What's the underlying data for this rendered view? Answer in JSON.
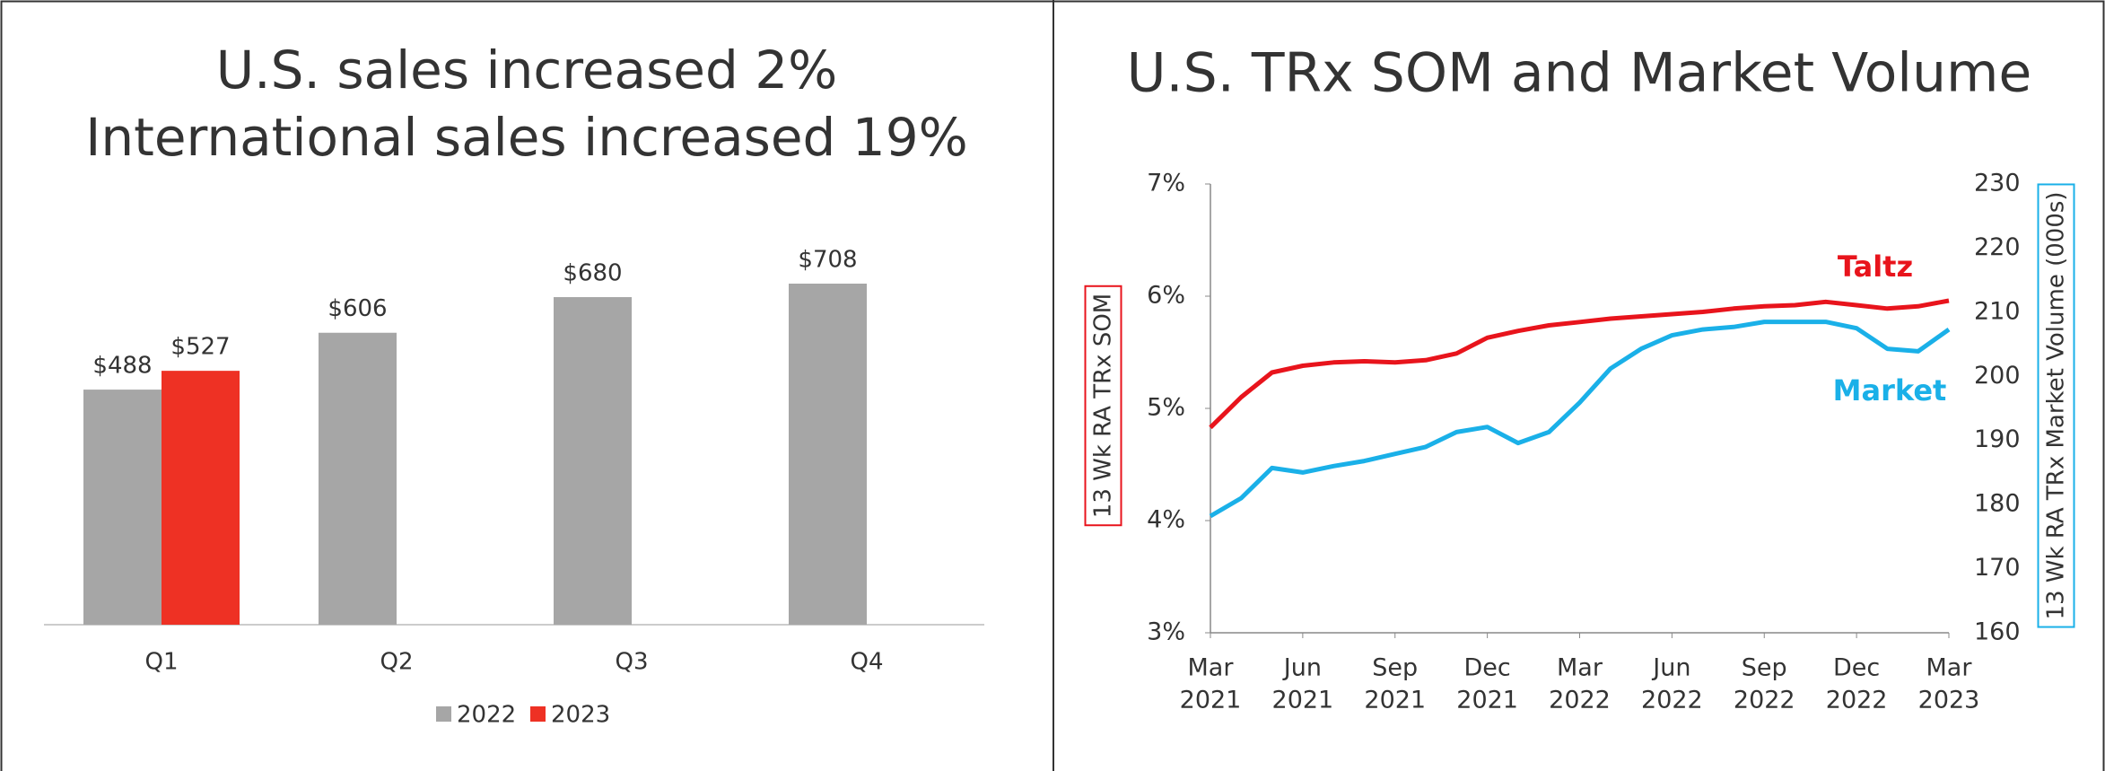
{
  "chart_data": [
    {
      "type": "bar",
      "title": [
        "U.S. sales increased 2%",
        "International sales increased 19%"
      ],
      "categories": [
        "Q1",
        "Q2",
        "Q3",
        "Q4"
      ],
      "series": [
        {
          "name": "2022",
          "color": "#a6a6a6",
          "values": [
            488,
            606,
            680,
            708
          ],
          "value_labels": [
            "$488",
            "$606",
            "$680",
            "$708"
          ]
        },
        {
          "name": "2023",
          "color": "#ee3124",
          "values": [
            527,
            null,
            null,
            null
          ],
          "value_labels": [
            "$527",
            null,
            null,
            null
          ]
        }
      ],
      "legend": "bottom"
    },
    {
      "type": "line",
      "title": "U.S. TRx SOM and Market Volume",
      "ylabel": "13 Wk RA TRx SOM",
      "y2label": "13 Wk RA TRx Market Volume (000s)",
      "x": [
        "2021-03",
        "2021-04",
        "2021-05",
        "2021-06",
        "2021-07",
        "2021-08",
        "2021-09",
        "2021-10",
        "2021-11",
        "2021-12",
        "2022-01",
        "2022-02",
        "2022-03",
        "2022-04",
        "2022-05",
        "2022-06",
        "2022-07",
        "2022-08",
        "2022-09",
        "2022-10",
        "2022-11",
        "2022-12",
        "2023-01",
        "2023-02",
        "2023-03"
      ],
      "xticks": [
        {
          "value": "2021-03",
          "label": [
            "Mar",
            "2021"
          ]
        },
        {
          "value": "2021-06",
          "label": [
            "Jun",
            "2021"
          ]
        },
        {
          "value": "2021-09",
          "label": [
            "Sep",
            "2021"
          ]
        },
        {
          "value": "2021-12",
          "label": [
            "Dec",
            "2021"
          ]
        },
        {
          "value": "2022-03",
          "label": [
            "Mar",
            "2022"
          ]
        },
        {
          "value": "2022-06",
          "label": [
            "Jun",
            "2022"
          ]
        },
        {
          "value": "2022-09",
          "label": [
            "Sep",
            "2022"
          ]
        },
        {
          "value": "2022-12",
          "label": [
            "Dec",
            "2022"
          ]
        },
        {
          "value": "2023-03",
          "label": [
            "Mar",
            "2023"
          ]
        }
      ],
      "ylim": [
        3,
        7
      ],
      "yticks": [
        {
          "value": 3,
          "label": "3%"
        },
        {
          "value": 4,
          "label": "4%"
        },
        {
          "value": 5,
          "label": "5%"
        },
        {
          "value": 6,
          "label": "6%"
        },
        {
          "value": 7,
          "label": "7%"
        }
      ],
      "y2lim": [
        160,
        230
      ],
      "y2ticks": [
        160,
        170,
        180,
        190,
        200,
        210,
        220,
        230
      ],
      "series": [
        {
          "name": "Taltz",
          "color": "#e8141c",
          "axis": "y",
          "values": [
            4.83,
            5.1,
            5.32,
            5.38,
            5.41,
            5.42,
            5.41,
            5.43,
            5.49,
            5.63,
            5.69,
            5.74,
            5.77,
            5.8,
            5.82,
            5.84,
            5.86,
            5.89,
            5.91,
            5.92,
            5.95,
            5.92,
            5.89,
            5.91,
            5.96
          ]
        },
        {
          "name": "Market",
          "color": "#1ab0e8",
          "axis": "y2",
          "values": [
            178.2,
            181,
            185.7,
            185,
            186,
            186.8,
            187.9,
            189,
            191.3,
            192.1,
            189.6,
            191.3,
            195.9,
            201.2,
            204.3,
            206.4,
            207.3,
            207.7,
            208.5,
            208.5,
            208.5,
            207.5,
            204.3,
            203.9,
            207.3
          ]
        }
      ]
    }
  ]
}
